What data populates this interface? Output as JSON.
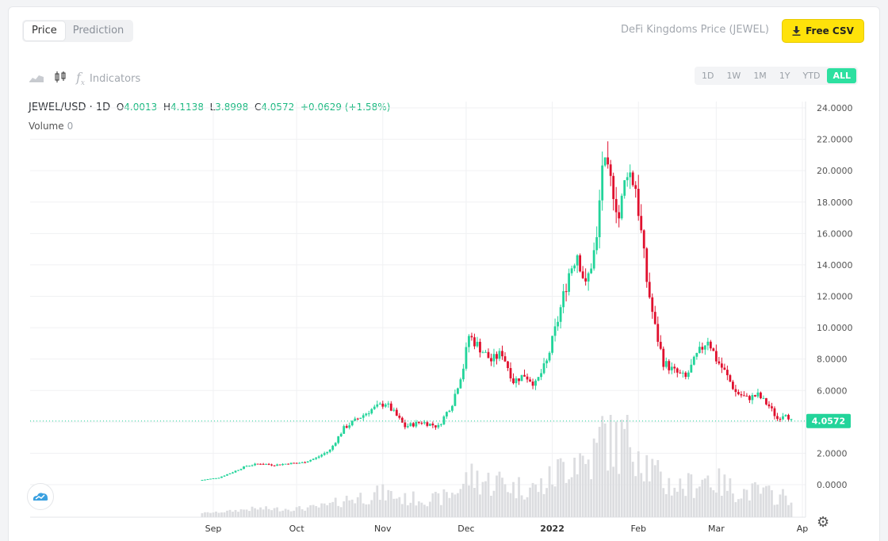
{
  "tabs": {
    "price": "Price",
    "prediction": "Prediction"
  },
  "asset_title": "DeFi Kingdoms Price (JEWEL)",
  "csv_button": "Free CSV",
  "toolbar": {
    "indicators": "Indicators",
    "fx": "f",
    "fx_sub": "x"
  },
  "ranges": [
    "1D",
    "1W",
    "1M",
    "1Y",
    "YTD",
    "ALL"
  ],
  "active_range": "ALL",
  "legend": {
    "symbol": "JEWEL/USD · 1D",
    "o_label": "O",
    "o": "4.0013",
    "h_label": "H",
    "h": "4.1138",
    "l_label": "L",
    "l": "3.8998",
    "c_label": "C",
    "c": "4.0572",
    "change": "+0.0629 (+1.58%)",
    "volume_label": "Volume",
    "volume": "0"
  },
  "colors": {
    "up": "#22d49a",
    "down": "#e0102e",
    "accent": "#2de0a0",
    "csv": "#ffe20a"
  },
  "chart_data": {
    "type": "candlestick",
    "symbol": "JEWEL/USD",
    "interval": "1D",
    "yticks": [
      "24.0000",
      "22.0000",
      "20.0000",
      "18.0000",
      "16.0000",
      "14.0000",
      "12.0000",
      "10.0000",
      "8.0000",
      "6.0000",
      "4.0000",
      "2.0000",
      "0.0000"
    ],
    "xticks": [
      "Sep",
      "Oct",
      "Nov",
      "Dec",
      "2022",
      "Feb",
      "Mar",
      "Ap"
    ],
    "ylim": [
      0,
      24
    ],
    "last_price": "4.0572",
    "price_path": [
      [
        "2021-08-28",
        0.3
      ],
      [
        "2021-09-03",
        0.45
      ],
      [
        "2021-09-08",
        0.8
      ],
      [
        "2021-09-13",
        1.2
      ],
      [
        "2021-09-18",
        1.35
      ],
      [
        "2021-09-23",
        1.25
      ],
      [
        "2021-09-28",
        1.35
      ],
      [
        "2021-10-03",
        1.4
      ],
      [
        "2021-10-08",
        1.7
      ],
      [
        "2021-10-13",
        2.2
      ],
      [
        "2021-10-18",
        3.6
      ],
      [
        "2021-10-23",
        4.2
      ],
      [
        "2021-10-28",
        4.8
      ],
      [
        "2021-11-02",
        5.2
      ],
      [
        "2021-11-05",
        4.6
      ],
      [
        "2021-11-09",
        3.7
      ],
      [
        "2021-11-15",
        4.0
      ],
      [
        "2021-11-21",
        3.7
      ],
      [
        "2021-11-26",
        5.2
      ],
      [
        "2021-11-30",
        7.5
      ],
      [
        "2021-12-02",
        9.5
      ],
      [
        "2021-12-06",
        8.7
      ],
      [
        "2021-12-10",
        7.9
      ],
      [
        "2021-12-14",
        8.4
      ],
      [
        "2021-12-18",
        6.6
      ],
      [
        "2021-12-22",
        7.0
      ],
      [
        "2021-12-26",
        6.4
      ],
      [
        "2021-12-30",
        7.8
      ],
      [
        "2022-01-03",
        10.5
      ],
      [
        "2022-01-07",
        13.5
      ],
      [
        "2022-01-10",
        14.8
      ],
      [
        "2022-01-13",
        12.6
      ],
      [
        "2022-01-17",
        15.5
      ],
      [
        "2022-01-19",
        20.5
      ],
      [
        "2022-01-23",
        18.8
      ],
      [
        "2022-01-25",
        17.0
      ],
      [
        "2022-01-28",
        20.2
      ],
      [
        "2022-01-31",
        19.0
      ],
      [
        "2022-02-02",
        16.0
      ],
      [
        "2022-02-04",
        13.0
      ],
      [
        "2022-02-07",
        10.0
      ],
      [
        "2022-02-10",
        7.8
      ],
      [
        "2022-02-14",
        7.2
      ],
      [
        "2022-02-18",
        6.8
      ],
      [
        "2022-02-22",
        8.2
      ],
      [
        "2022-02-26",
        9.3
      ],
      [
        "2022-03-01",
        8.0
      ],
      [
        "2022-03-04",
        7.2
      ],
      [
        "2022-03-08",
        5.9
      ],
      [
        "2022-03-12",
        5.5
      ],
      [
        "2022-03-16",
        5.7
      ],
      [
        "2022-03-20",
        5.0
      ],
      [
        "2022-03-23",
        4.2
      ],
      [
        "2022-03-26",
        4.6
      ],
      [
        "2022-03-28",
        4.06
      ]
    ]
  }
}
